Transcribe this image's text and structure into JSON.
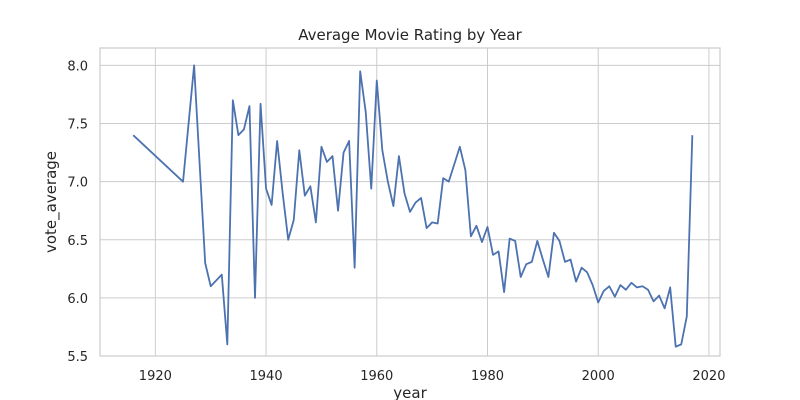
{
  "chart_data": {
    "type": "line",
    "title": "Average Movie Rating by Year",
    "xlabel": "year",
    "ylabel": "vote_average",
    "xlim": [
      1910,
      2022
    ],
    "ylim": [
      5.5,
      8.15
    ],
    "grid": true,
    "xticks": [
      1920,
      1940,
      1960,
      1980,
      2000,
      2020
    ],
    "yticks": [
      5.5,
      6.0,
      6.5,
      7.0,
      7.5,
      8.0
    ],
    "xtick_labels": [
      "1920",
      "1940",
      "1960",
      "1980",
      "2000",
      "2020"
    ],
    "ytick_labels": [
      "5.5",
      "6.0",
      "6.5",
      "7.0",
      "7.5",
      "8.0"
    ],
    "series": [
      {
        "color": "#4c72b0",
        "x": [
          1916,
          1925,
          1927,
          1929,
          1930,
          1932,
          1933,
          1934,
          1935,
          1936,
          1937,
          1938,
          1939,
          1940,
          1941,
          1942,
          1943,
          1944,
          1945,
          1946,
          1947,
          1948,
          1949,
          1950,
          1951,
          1952,
          1953,
          1954,
          1955,
          1956,
          1957,
          1958,
          1959,
          1960,
          1961,
          1962,
          1963,
          1964,
          1965,
          1966,
          1967,
          1968,
          1969,
          1970,
          1971,
          1972,
          1973,
          1974,
          1975,
          1976,
          1977,
          1978,
          1979,
          1980,
          1981,
          1982,
          1983,
          1984,
          1985,
          1986,
          1987,
          1988,
          1989,
          1990,
          1991,
          1992,
          1993,
          1994,
          1995,
          1996,
          1997,
          1998,
          1999,
          2000,
          2001,
          2002,
          2003,
          2004,
          2005,
          2006,
          2007,
          2008,
          2009,
          2010,
          2011,
          2012,
          2013,
          2014,
          2015,
          2016,
          2017
        ],
        "y": [
          7.4,
          7.0,
          8.0,
          6.3,
          6.1,
          6.2,
          5.6,
          7.7,
          7.4,
          7.45,
          7.65,
          6.0,
          7.67,
          6.94,
          6.8,
          7.35,
          6.9,
          6.5,
          6.67,
          7.27,
          6.88,
          6.96,
          6.65,
          7.3,
          7.17,
          7.22,
          6.75,
          7.25,
          7.35,
          6.26,
          7.95,
          7.6,
          6.94,
          7.87,
          7.27,
          7.0,
          6.79,
          7.22,
          6.9,
          6.74,
          6.82,
          6.86,
          6.6,
          6.65,
          6.64,
          7.03,
          7.0,
          7.15,
          7.3,
          7.1,
          6.53,
          6.62,
          6.48,
          6.61,
          6.37,
          6.4,
          6.05,
          6.51,
          6.49,
          6.18,
          6.29,
          6.31,
          6.49,
          6.33,
          6.18,
          6.56,
          6.49,
          6.31,
          6.33,
          6.14,
          6.26,
          6.22,
          6.11,
          5.96,
          6.06,
          6.1,
          6.01,
          6.11,
          6.07,
          6.13,
          6.09,
          6.1,
          6.07,
          5.97,
          6.02,
          5.91,
          6.09,
          5.58,
          5.6,
          5.84,
          7.4
        ]
      }
    ]
  }
}
